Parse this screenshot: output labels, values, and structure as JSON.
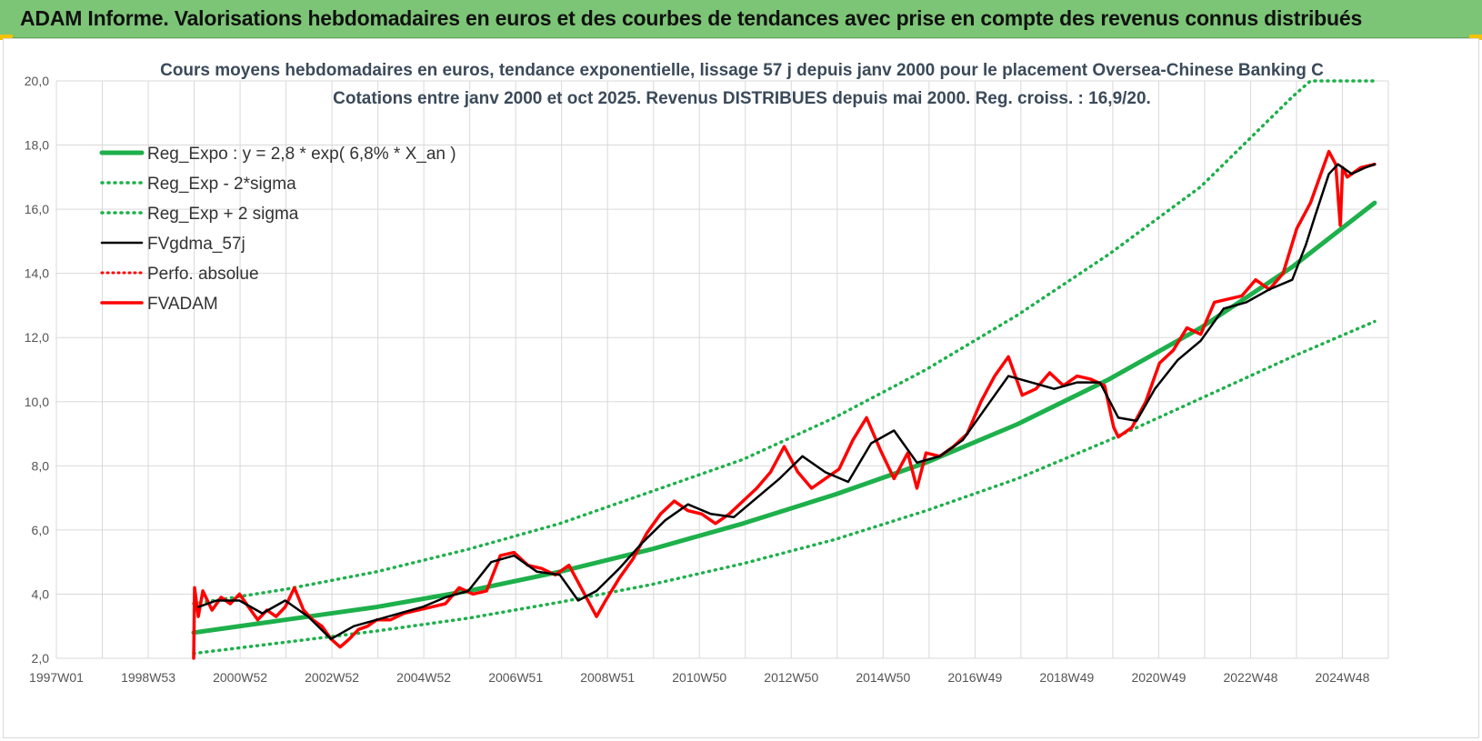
{
  "banner": {
    "title": "ADAM Informe. Valorisations hebdomadaires en euros et des courbes de tendances avec prise en compte des revenus connus distribués"
  },
  "colors": {
    "banner_bg": "#7cc576",
    "trend_green": "#1db04b",
    "ma_black": "#000000",
    "adam_red": "#ff0000",
    "grid": "#d9d9d9"
  },
  "chart_data": {
    "type": "line",
    "title": "Cours moyens hebdomadaires en euros, tendance exponentielle, lissage 57 j depuis janv 2000 pour le placement Oversea-Chinese Banking C",
    "subtitle": "Cotations entre janv 2000 et oct 2025. Revenus DISTRIBUES depuis mai 2000. Reg. croiss. : 16,9/20.",
    "xlabel": "",
    "ylabel": "",
    "x_ticks": [
      "1997W01",
      "1998W53",
      "2000W52",
      "2002W52",
      "2004W52",
      "2006W51",
      "2008W51",
      "2010W50",
      "2012W50",
      "2014W50",
      "2016W49",
      "2018W49",
      "2020W49",
      "2022W48",
      "2024W48"
    ],
    "xlim": [
      1997.0,
      2026.1
    ],
    "ylim": [
      2.0,
      20.0
    ],
    "y_ticks": [
      "2,0",
      "4,0",
      "6,0",
      "8,0",
      "10,0",
      "12,0",
      "14,0",
      "16,0",
      "18,0",
      "20,0"
    ],
    "grid": true,
    "legend_position": "top-left",
    "series": [
      {
        "name": "Reg_Expo : y = 2,8 * exp( 6,8% *  X_an )",
        "style": "solid-thick-green",
        "x": [
          2000.0,
          2002.0,
          2004.0,
          2006.0,
          2008.0,
          2010.0,
          2012.0,
          2014.0,
          2016.0,
          2018.0,
          2020.0,
          2022.0,
          2024.0,
          2025.8
        ],
        "y": [
          2.8,
          3.2,
          3.6,
          4.1,
          4.7,
          5.4,
          6.2,
          7.1,
          8.1,
          9.3,
          10.7,
          12.3,
          14.2,
          16.2
        ]
      },
      {
        "name": "Reg_Exp - 2*sigma",
        "style": "dotted-green",
        "x": [
          2000.0,
          2002.0,
          2004.0,
          2006.0,
          2008.0,
          2010.0,
          2012.0,
          2014.0,
          2016.0,
          2018.0,
          2020.0,
          2022.0,
          2024.0,
          2025.8
        ],
        "y": [
          2.15,
          2.5,
          2.85,
          3.25,
          3.75,
          4.3,
          4.95,
          5.7,
          6.6,
          7.6,
          8.8,
          10.1,
          11.4,
          12.5
        ]
      },
      {
        "name": "Reg_Exp + 2 sigma",
        "style": "dotted-green",
        "x": [
          2000.0,
          2002.0,
          2004.0,
          2006.0,
          2008.0,
          2010.0,
          2012.0,
          2014.0,
          2016.0,
          2018.0,
          2020.0,
          2022.0,
          2024.0,
          2024.4,
          2025.8
        ],
        "y": [
          3.7,
          4.15,
          4.7,
          5.4,
          6.2,
          7.2,
          8.2,
          9.5,
          11.0,
          12.7,
          14.6,
          16.7,
          19.5,
          20.0,
          20.0
        ]
      },
      {
        "name": "FVgdma_57j",
        "style": "solid-black",
        "x": [
          2000.1,
          2000.5,
          2001.0,
          2001.5,
          2002.0,
          2002.5,
          2003.0,
          2003.5,
          2004.0,
          2004.5,
          2005.0,
          2005.5,
          2006.0,
          2006.5,
          2007.0,
          2007.5,
          2008.0,
          2008.4,
          2008.8,
          2009.3,
          2009.8,
          2010.3,
          2010.8,
          2011.3,
          2011.8,
          2012.3,
          2012.8,
          2013.3,
          2013.8,
          2014.3,
          2014.8,
          2015.3,
          2015.8,
          2016.3,
          2016.8,
          2017.3,
          2017.8,
          2018.3,
          2018.8,
          2019.3,
          2019.8,
          2020.2,
          2020.6,
          2021.0,
          2021.5,
          2022.0,
          2022.5,
          2023.0,
          2023.5,
          2024.0,
          2024.3,
          2024.5,
          2024.8,
          2025.0,
          2025.3,
          2025.6,
          2025.8
        ],
        "y": [
          3.6,
          3.8,
          3.8,
          3.4,
          3.8,
          3.3,
          2.6,
          3.0,
          3.2,
          3.4,
          3.6,
          3.9,
          4.1,
          5.0,
          5.2,
          4.7,
          4.6,
          3.8,
          4.1,
          4.8,
          5.6,
          6.3,
          6.8,
          6.5,
          6.4,
          7.0,
          7.6,
          8.3,
          7.8,
          7.5,
          8.7,
          9.1,
          8.1,
          8.3,
          8.8,
          9.8,
          10.8,
          10.6,
          10.4,
          10.6,
          10.6,
          9.5,
          9.4,
          10.4,
          11.3,
          11.9,
          12.9,
          13.1,
          13.5,
          13.8,
          14.9,
          15.8,
          17.1,
          17.4,
          17.1,
          17.3,
          17.4
        ]
      },
      {
        "name": "Perfo. absolue",
        "style": "dotted-red",
        "x": [],
        "y": []
      },
      {
        "name": "FVADAM",
        "style": "solid-thick-red",
        "x": [
          2000.0,
          2000.02,
          2000.1,
          2000.2,
          2000.4,
          2000.6,
          2000.8,
          2001.0,
          2001.2,
          2001.4,
          2001.6,
          2001.8,
          2002.0,
          2002.2,
          2002.4,
          2002.6,
          2002.8,
          2003.0,
          2003.2,
          2003.4,
          2003.6,
          2003.8,
          2004.0,
          2004.3,
          2004.6,
          2004.9,
          2005.2,
          2005.5,
          2005.8,
          2006.1,
          2006.4,
          2006.7,
          2007.0,
          2007.3,
          2007.6,
          2007.9,
          2008.2,
          2008.5,
          2008.8,
          2009.0,
          2009.3,
          2009.6,
          2009.9,
          2010.2,
          2010.5,
          2010.8,
          2011.1,
          2011.4,
          2011.7,
          2012.0,
          2012.3,
          2012.6,
          2012.9,
          2013.2,
          2013.5,
          2013.8,
          2014.1,
          2014.4,
          2014.7,
          2015.0,
          2015.3,
          2015.6,
          2015.8,
          2016.0,
          2016.3,
          2016.6,
          2016.9,
          2017.2,
          2017.5,
          2017.8,
          2018.1,
          2018.4,
          2018.7,
          2019.0,
          2019.3,
          2019.6,
          2019.9,
          2020.1,
          2020.2,
          2020.5,
          2020.8,
          2021.1,
          2021.4,
          2021.7,
          2022.0,
          2022.3,
          2022.6,
          2022.9,
          2023.2,
          2023.5,
          2023.8,
          2024.1,
          2024.4,
          2024.6,
          2024.8,
          2024.95,
          2025.05,
          2025.1,
          2025.2,
          2025.5,
          2025.8
        ],
        "y": [
          2.0,
          4.2,
          3.3,
          4.1,
          3.5,
          3.9,
          3.7,
          4.0,
          3.6,
          3.2,
          3.5,
          3.3,
          3.6,
          4.2,
          3.5,
          3.2,
          3.0,
          2.6,
          2.35,
          2.6,
          2.9,
          3.0,
          3.2,
          3.2,
          3.4,
          3.5,
          3.6,
          3.7,
          4.2,
          4.0,
          4.1,
          5.2,
          5.3,
          4.9,
          4.8,
          4.6,
          4.9,
          4.1,
          3.3,
          3.8,
          4.5,
          5.1,
          5.9,
          6.5,
          6.9,
          6.6,
          6.5,
          6.2,
          6.5,
          6.9,
          7.3,
          7.8,
          8.6,
          7.8,
          7.3,
          7.6,
          7.9,
          8.8,
          9.5,
          8.5,
          7.6,
          8.4,
          7.3,
          8.4,
          8.3,
          8.6,
          9.0,
          10.0,
          10.8,
          11.4,
          10.2,
          10.4,
          10.9,
          10.5,
          10.8,
          10.7,
          10.5,
          9.2,
          8.9,
          9.2,
          10.0,
          11.2,
          11.6,
          12.3,
          12.1,
          13.1,
          13.2,
          13.3,
          13.8,
          13.5,
          14.0,
          15.4,
          16.2,
          17.0,
          17.8,
          17.4,
          15.5,
          17.3,
          17.0,
          17.3,
          17.4
        ]
      }
    ]
  }
}
